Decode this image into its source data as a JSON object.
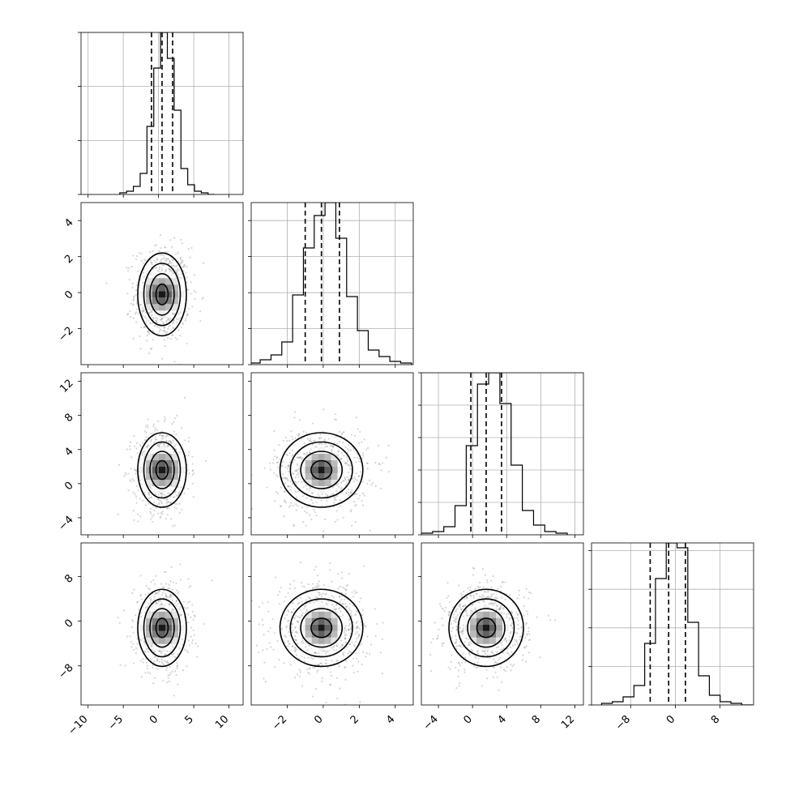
{
  "chart_data": {
    "type": "corner",
    "title": "",
    "parameters": [
      {
        "range": [
          -11,
          12
        ],
        "median": 0.5,
        "quantiles": [
          -1.0,
          0.5,
          2.0
        ],
        "std": 1.5,
        "ticks": [
          {
            "v": -10,
            "label": "−10"
          },
          {
            "v": -5,
            "label": "−5"
          },
          {
            "v": 0,
            "label": "0"
          },
          {
            "v": 5,
            "label": "5"
          },
          {
            "v": 10,
            "label": "10"
          }
        ],
        "hist_y_ticks": [
          0,
          0.333,
          0.667,
          1.0
        ],
        "hist_values": [
          0.01,
          0.02,
          0.05,
          0.13,
          0.42,
          0.78,
          1.0,
          0.84,
          0.52,
          0.16,
          0.06,
          0.02,
          0.01,
          0.0
        ]
      },
      {
        "range": [
          -4,
          5
        ],
        "median": -0.1,
        "quantiles": [
          -1.0,
          -0.1,
          0.9
        ],
        "std": 1.0,
        "ticks": [
          {
            "v": -2,
            "label": "−2"
          },
          {
            "v": 0,
            "label": "0"
          },
          {
            "v": 2,
            "label": "2"
          },
          {
            "v": 4,
            "label": "4"
          }
        ],
        "hist_y_ticks": [
          0,
          0.222,
          0.444,
          0.667,
          0.889
        ],
        "hist_values": [
          0.01,
          0.03,
          0.06,
          0.14,
          0.43,
          0.72,
          0.92,
          1.0,
          0.78,
          0.42,
          0.21,
          0.09,
          0.05,
          0.02,
          0.01
        ]
      },
      {
        "range": [
          -6,
          13
        ],
        "median": 1.6,
        "quantiles": [
          -0.2,
          1.6,
          3.4
        ],
        "std": 1.9,
        "ticks": [
          {
            "v": -4,
            "label": "−4"
          },
          {
            "v": 0,
            "label": "0"
          },
          {
            "v": 4,
            "label": "4"
          },
          {
            "v": 8,
            "label": "8"
          },
          {
            "v": 12,
            "label": "12"
          }
        ],
        "hist_y_ticks": [
          0,
          0.2,
          0.4,
          0.6,
          0.8,
          1.0
        ],
        "hist_values": [
          0.01,
          0.02,
          0.05,
          0.18,
          0.55,
          0.93,
          1.0,
          0.81,
          0.43,
          0.15,
          0.06,
          0.02,
          0.01
        ]
      },
      {
        "range": [
          -15,
          14
        ],
        "median": -1.2,
        "quantiles": [
          -4.5,
          -1.2,
          1.8
        ],
        "std": 3.0,
        "ticks": [
          {
            "v": -8,
            "label": "−8"
          },
          {
            "v": 0,
            "label": "0"
          },
          {
            "v": 8,
            "label": "8"
          }
        ],
        "hist_y_ticks": [
          0,
          0.238,
          0.476,
          0.714,
          0.952
        ],
        "hist_values": [
          0.01,
          0.02,
          0.05,
          0.12,
          0.38,
          0.78,
          1.0,
          0.97,
          0.51,
          0.18,
          0.06,
          0.02,
          0.01,
          0.0
        ]
      }
    ],
    "grid": true,
    "contour_levels": [
      0.5,
      1.0,
      1.5,
      2.0
    ],
    "scatter_points_per_panel": 700
  }
}
